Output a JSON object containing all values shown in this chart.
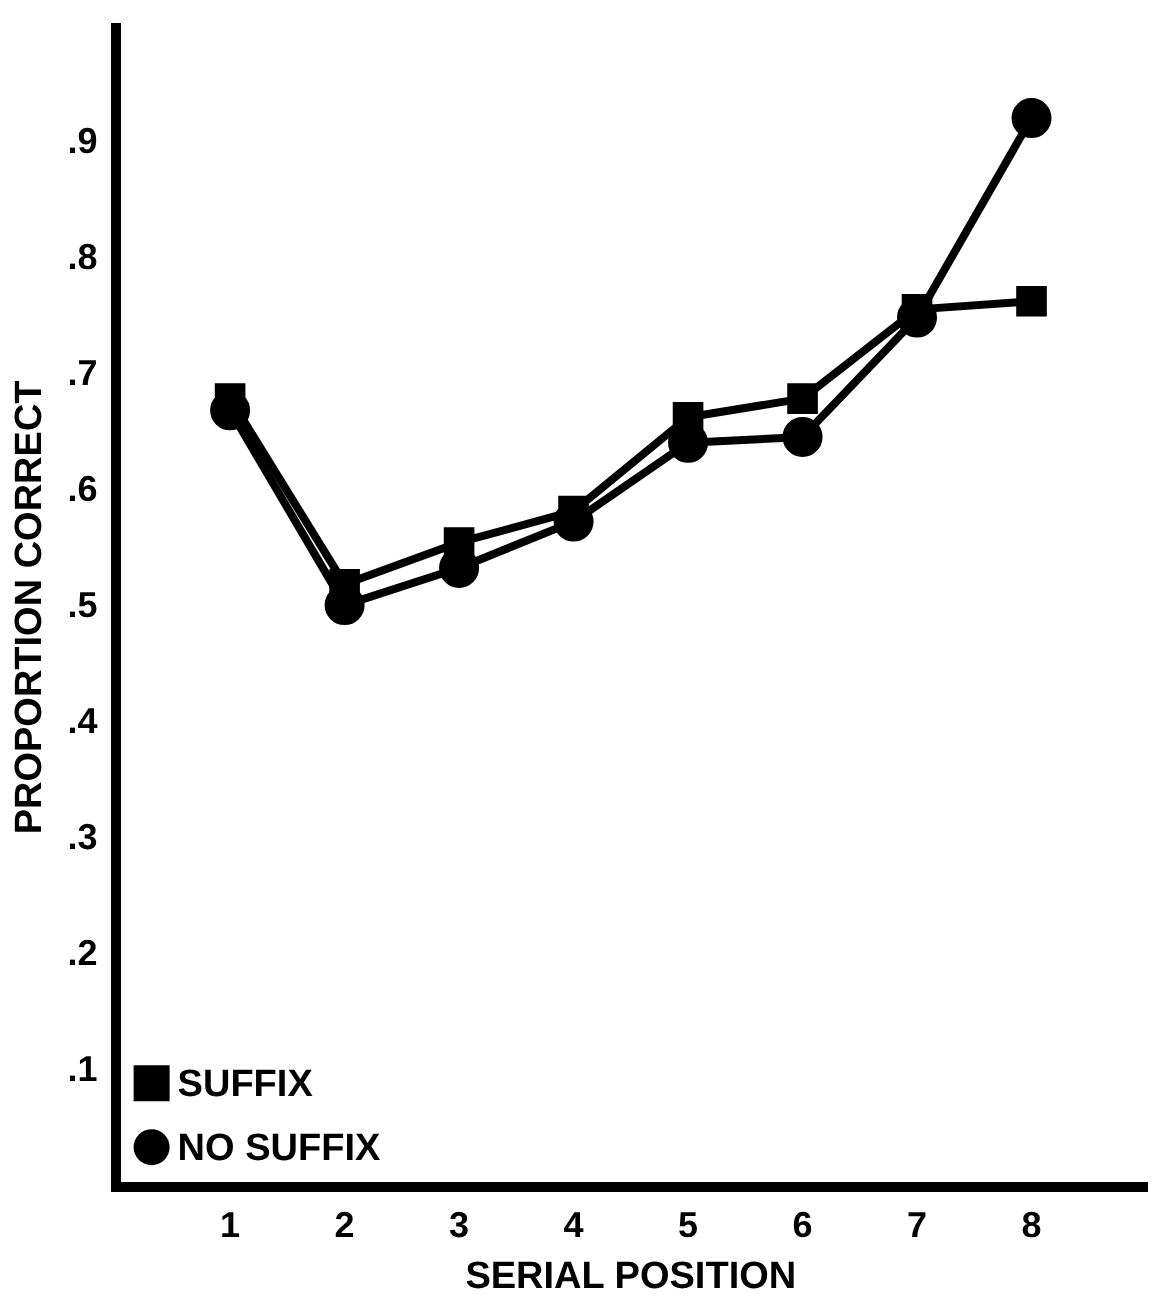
{
  "chart_data": {
    "type": "line",
    "xlabel": "SERIAL POSITION",
    "ylabel": "PROPORTION CORRECT",
    "x": [
      1,
      2,
      3,
      4,
      5,
      6,
      7,
      8
    ],
    "series": [
      {
        "name": "SUFFIX",
        "color": "#000000",
        "marker": "square",
        "values": [
          0.68,
          0.52,
          0.556,
          0.583,
          0.664,
          0.68,
          0.757,
          0.764
        ]
      },
      {
        "name": "NO SUFFIX",
        "color": "#000000",
        "marker": "circle",
        "values": [
          0.67,
          0.502,
          0.534,
          0.574,
          0.642,
          0.647,
          0.75,
          0.922
        ]
      }
    ],
    "xlim": [
      0,
      9
    ],
    "xticks": [
      1,
      2,
      3,
      4,
      5,
      6,
      7,
      8
    ],
    "ylim": [
      0,
      1
    ],
    "yticks": [
      {
        "value": 0.1,
        "label": ".1"
      },
      {
        "value": 0.2,
        "label": ".2"
      },
      {
        "value": 0.3,
        "label": ".3"
      },
      {
        "value": 0.4,
        "label": ".4"
      },
      {
        "value": 0.5,
        "label": ".5"
      },
      {
        "value": 0.6,
        "label": ".6"
      },
      {
        "value": 0.7,
        "label": ".7"
      },
      {
        "value": 0.8,
        "label": ".8"
      },
      {
        "value": 0.9,
        "label": ".9"
      }
    ],
    "grid": false,
    "legend": "bottom left",
    "line_style": "solid"
  }
}
